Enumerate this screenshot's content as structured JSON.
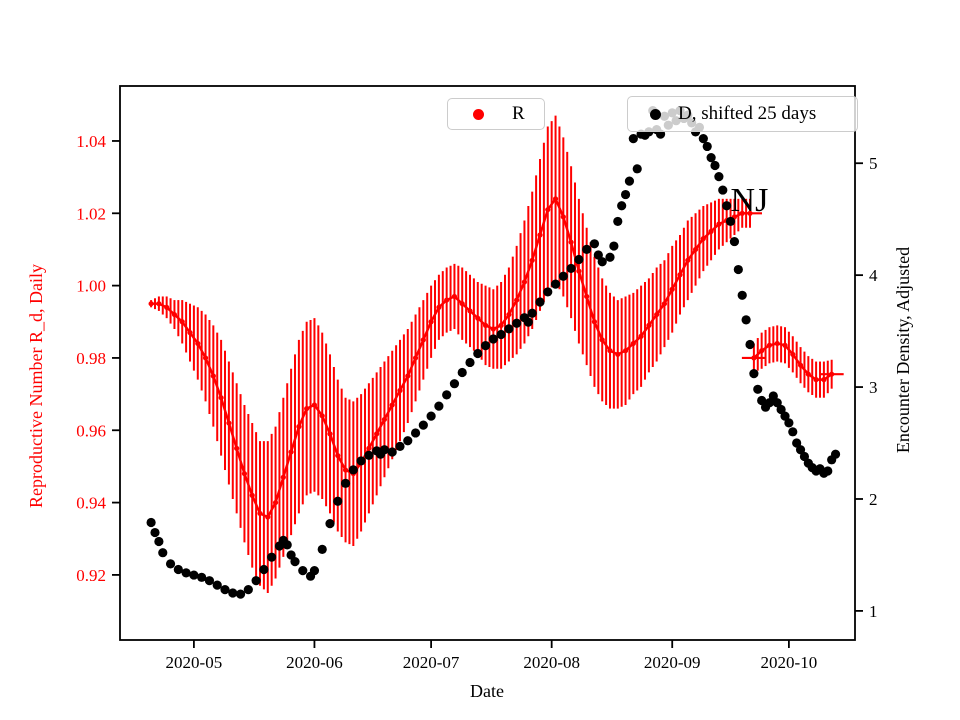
{
  "figure": {
    "background": "#ffffff"
  },
  "legend": {
    "frame_color": "#cccccc",
    "entries": [
      {
        "label": "R",
        "marker": "dot",
        "color": "#ff0000"
      },
      {
        "label": "D, shifted 25 days",
        "marker": "dot",
        "color": "#000000"
      }
    ]
  },
  "chart_data": {
    "type": "scatter",
    "title": "",
    "xlabel": "Date",
    "xlim": [
      "2020-04-12",
      "2020-10-18"
    ],
    "x_ticks": [
      {
        "label": "2020-05",
        "date": "2020-05-01"
      },
      {
        "label": "2020-06",
        "date": "2020-06-01"
      },
      {
        "label": "2020-07",
        "date": "2020-07-01"
      },
      {
        "label": "2020-08",
        "date": "2020-08-01"
      },
      {
        "label": "2020-09",
        "date": "2020-09-01"
      },
      {
        "label": "2020-10",
        "date": "2020-10-01"
      }
    ],
    "left_axis": {
      "label": "Reproductive Number R_d, Daily",
      "color": "#ff0000",
      "ylim": [
        0.902,
        1.0552
      ],
      "ticks": [
        {
          "label": "1.04",
          "value": 1.04
        },
        {
          "label": "1.02",
          "value": 1.02
        },
        {
          "label": "1.00",
          "value": 1.0
        },
        {
          "label": "0.98",
          "value": 0.98
        },
        {
          "label": "0.96",
          "value": 0.96
        },
        {
          "label": "0.94",
          "value": 0.94
        },
        {
          "label": "0.92",
          "value": 0.92
        }
      ]
    },
    "right_axis": {
      "label": "Encounter Density, Adjusted",
      "color": "#000000",
      "ylim": [
        0.74,
        5.69
      ],
      "ticks": [
        {
          "label": "5",
          "value": 5
        },
        {
          "label": "4",
          "value": 4
        },
        {
          "label": "3",
          "value": 3
        },
        {
          "label": "2",
          "value": 2
        },
        {
          "label": "1",
          "value": 1
        }
      ]
    },
    "annotation": {
      "text": "NJ",
      "date": "2020-09-16",
      "value_left_axis": 1.024
    },
    "series": [
      {
        "name": "R",
        "axis": "left",
        "color": "#ff0000",
        "style": "errorbar",
        "segments": [
          [
            [
              "2020-04-20",
              0.995,
              0.001
            ],
            [
              "2020-04-22",
              0.995,
              0.002
            ],
            [
              "2020-04-24",
              0.994,
              0.003
            ],
            [
              "2020-04-26",
              0.992,
              0.004
            ],
            [
              "2020-04-28",
              0.99,
              0.006
            ],
            [
              "2020-04-30",
              0.987,
              0.008
            ],
            [
              "2020-05-02",
              0.984,
              0.01
            ],
            [
              "2020-05-04",
              0.98,
              0.012
            ],
            [
              "2020-05-06",
              0.975,
              0.014
            ],
            [
              "2020-05-08",
              0.969,
              0.016
            ],
            [
              "2020-05-10",
              0.962,
              0.017
            ],
            [
              "2020-05-12",
              0.955,
              0.018
            ],
            [
              "2020-05-14",
              0.948,
              0.019
            ],
            [
              "2020-05-16",
              0.942,
              0.02
            ],
            [
              "2020-05-18",
              0.937,
              0.02
            ],
            [
              "2020-05-20",
              0.936,
              0.021
            ],
            [
              "2020-05-22",
              0.94,
              0.021
            ],
            [
              "2020-05-24",
              0.947,
              0.022
            ],
            [
              "2020-05-26",
              0.954,
              0.023
            ],
            [
              "2020-05-28",
              0.961,
              0.024
            ],
            [
              "2020-05-30",
              0.966,
              0.024
            ],
            [
              "2020-06-01",
              0.967,
              0.024
            ],
            [
              "2020-06-03",
              0.964,
              0.023
            ],
            [
              "2020-06-05",
              0.959,
              0.022
            ],
            [
              "2020-06-07",
              0.953,
              0.021
            ],
            [
              "2020-06-09",
              0.949,
              0.02
            ],
            [
              "2020-06-11",
              0.948,
              0.02
            ],
            [
              "2020-06-13",
              0.951,
              0.019
            ],
            [
              "2020-06-15",
              0.955,
              0.018
            ],
            [
              "2020-06-17",
              0.959,
              0.017
            ],
            [
              "2020-06-19",
              0.963,
              0.016
            ],
            [
              "2020-06-21",
              0.967,
              0.015
            ],
            [
              "2020-06-23",
              0.971,
              0.014
            ],
            [
              "2020-06-25",
              0.975,
              0.013
            ],
            [
              "2020-06-27",
              0.98,
              0.012
            ],
            [
              "2020-06-29",
              0.985,
              0.011
            ],
            [
              "2020-07-01",
              0.99,
              0.01
            ],
            [
              "2020-07-03",
              0.994,
              0.009
            ],
            [
              "2020-07-05",
              0.996,
              0.009
            ],
            [
              "2020-07-07",
              0.997,
              0.009
            ],
            [
              "2020-07-09",
              0.995,
              0.01
            ],
            [
              "2020-07-11",
              0.993,
              0.01
            ],
            [
              "2020-07-13",
              0.991,
              0.01
            ],
            [
              "2020-07-15",
              0.989,
              0.011
            ],
            [
              "2020-07-17",
              0.988,
              0.011
            ],
            [
              "2020-07-19",
              0.989,
              0.012
            ],
            [
              "2020-07-21",
              0.992,
              0.013
            ],
            [
              "2020-07-23",
              0.996,
              0.015
            ],
            [
              "2020-07-25",
              1.001,
              0.017
            ],
            [
              "2020-07-27",
              1.007,
              0.019
            ],
            [
              "2020-07-29",
              1.014,
              0.021
            ],
            [
              "2020-07-31",
              1.021,
              0.023
            ],
            [
              "2020-08-02",
              1.024,
              0.023
            ],
            [
              "2020-08-04",
              1.019,
              0.022
            ],
            [
              "2020-08-06",
              1.012,
              0.021
            ],
            [
              "2020-08-08",
              1.004,
              0.02
            ],
            [
              "2020-08-10",
              0.997,
              0.019
            ],
            [
              "2020-08-12",
              0.99,
              0.018
            ],
            [
              "2020-08-14",
              0.985,
              0.017
            ],
            [
              "2020-08-16",
              0.982,
              0.016
            ],
            [
              "2020-08-18",
              0.981,
              0.015
            ],
            [
              "2020-08-20",
              0.982,
              0.015
            ],
            [
              "2020-08-22",
              0.984,
              0.014
            ],
            [
              "2020-08-24",
              0.986,
              0.014
            ],
            [
              "2020-08-26",
              0.989,
              0.013
            ],
            [
              "2020-08-28",
              0.992,
              0.013
            ],
            [
              "2020-08-30",
              0.995,
              0.012
            ],
            [
              "2020-09-01",
              0.999,
              0.012
            ],
            [
              "2020-09-03",
              1.003,
              0.011
            ],
            [
              "2020-09-05",
              1.007,
              0.011
            ],
            [
              "2020-09-07",
              1.01,
              0.01
            ],
            [
              "2020-09-09",
              1.013,
              0.009
            ],
            [
              "2020-09-11",
              1.015,
              0.008
            ],
            [
              "2020-09-13",
              1.017,
              0.007
            ],
            [
              "2020-09-15",
              1.018,
              0.006
            ],
            [
              "2020-09-17",
              1.019,
              0.005
            ],
            [
              "2020-09-19",
              1.02,
              0.004
            ],
            [
              "2020-09-21",
              1.02,
              0.004
            ]
          ],
          [
            [
              "2020-09-22",
              0.98,
              0.004
            ],
            [
              "2020-09-24",
              0.982,
              0.005
            ],
            [
              "2020-09-26",
              0.9835,
              0.005
            ],
            [
              "2020-09-28",
              0.984,
              0.005
            ],
            [
              "2020-09-30",
              0.9835,
              0.005
            ],
            [
              "2020-10-02",
              0.981,
              0.005
            ],
            [
              "2020-10-04",
              0.978,
              0.005
            ],
            [
              "2020-10-06",
              0.9755,
              0.005
            ],
            [
              "2020-10-08",
              0.974,
              0.005
            ],
            [
              "2020-10-10",
              0.974,
              0.005
            ],
            [
              "2020-10-12",
              0.9755,
              0.004
            ]
          ]
        ]
      },
      {
        "name": "D, shifted 25 days",
        "axis": "right",
        "color": "#000000",
        "style": "scatter",
        "points": [
          [
            "2020-04-20",
            1.79
          ],
          [
            "2020-04-21",
            1.7
          ],
          [
            "2020-04-22",
            1.62
          ],
          [
            "2020-04-23",
            1.52
          ],
          [
            "2020-04-25",
            1.42
          ],
          [
            "2020-04-27",
            1.37
          ],
          [
            "2020-04-29",
            1.34
          ],
          [
            "2020-05-01",
            1.32
          ],
          [
            "2020-05-03",
            1.3
          ],
          [
            "2020-05-05",
            1.27
          ],
          [
            "2020-05-07",
            1.23
          ],
          [
            "2020-05-09",
            1.19
          ],
          [
            "2020-05-11",
            1.16
          ],
          [
            "2020-05-13",
            1.15
          ],
          [
            "2020-05-15",
            1.19
          ],
          [
            "2020-05-17",
            1.27
          ],
          [
            "2020-05-19",
            1.37
          ],
          [
            "2020-05-21",
            1.48
          ],
          [
            "2020-05-23",
            1.58
          ],
          [
            "2020-05-24",
            1.63
          ],
          [
            "2020-05-25",
            1.59
          ],
          [
            "2020-05-26",
            1.5
          ],
          [
            "2020-05-27",
            1.44
          ],
          [
            "2020-05-29",
            1.36
          ],
          [
            "2020-05-31",
            1.31
          ],
          [
            "2020-06-01",
            1.36
          ],
          [
            "2020-06-03",
            1.55
          ],
          [
            "2020-06-05",
            1.78
          ],
          [
            "2020-06-07",
            1.98
          ],
          [
            "2020-06-09",
            2.14
          ],
          [
            "2020-06-11",
            2.26
          ],
          [
            "2020-06-13",
            2.34
          ],
          [
            "2020-06-15",
            2.39
          ],
          [
            "2020-06-17",
            2.43
          ],
          [
            "2020-06-18",
            2.4
          ],
          [
            "2020-06-19",
            2.44
          ],
          [
            "2020-06-21",
            2.42
          ],
          [
            "2020-06-23",
            2.47
          ],
          [
            "2020-06-25",
            2.52
          ],
          [
            "2020-06-27",
            2.59
          ],
          [
            "2020-06-29",
            2.66
          ],
          [
            "2020-07-01",
            2.74
          ],
          [
            "2020-07-03",
            2.83
          ],
          [
            "2020-07-05",
            2.93
          ],
          [
            "2020-07-07",
            3.03
          ],
          [
            "2020-07-09",
            3.13
          ],
          [
            "2020-07-11",
            3.22
          ],
          [
            "2020-07-13",
            3.3
          ],
          [
            "2020-07-15",
            3.37
          ],
          [
            "2020-07-17",
            3.43
          ],
          [
            "2020-07-19",
            3.47
          ],
          [
            "2020-07-21",
            3.52
          ],
          [
            "2020-07-23",
            3.57
          ],
          [
            "2020-07-25",
            3.62
          ],
          [
            "2020-07-26",
            3.58
          ],
          [
            "2020-07-27",
            3.66
          ],
          [
            "2020-07-29",
            3.76
          ],
          [
            "2020-07-31",
            3.85
          ],
          [
            "2020-08-02",
            3.92
          ],
          [
            "2020-08-04",
            3.99
          ],
          [
            "2020-08-06",
            4.06
          ],
          [
            "2020-08-08",
            4.14
          ],
          [
            "2020-08-10",
            4.23
          ],
          [
            "2020-08-12",
            4.28
          ],
          [
            "2020-08-13",
            4.18
          ],
          [
            "2020-08-14",
            4.12
          ],
          [
            "2020-08-16",
            4.16
          ],
          [
            "2020-08-17",
            4.26
          ],
          [
            "2020-08-18",
            4.48
          ],
          [
            "2020-08-19",
            4.62
          ],
          [
            "2020-08-20",
            4.72
          ],
          [
            "2020-08-21",
            4.84
          ],
          [
            "2020-08-22",
            5.22
          ],
          [
            "2020-08-23",
            4.95
          ],
          [
            "2020-08-24",
            5.26
          ],
          [
            "2020-08-25",
            5.25
          ],
          [
            "2020-08-26",
            5.28
          ],
          [
            "2020-08-27",
            5.47
          ],
          [
            "2020-08-28",
            5.3
          ],
          [
            "2020-08-29",
            5.26
          ],
          [
            "2020-08-30",
            5.42
          ],
          [
            "2020-08-31",
            5.34
          ],
          [
            "2020-09-01",
            5.45
          ],
          [
            "2020-09-02",
            5.38
          ],
          [
            "2020-09-03",
            5.47
          ],
          [
            "2020-09-04",
            5.4
          ],
          [
            "2020-09-05",
            5.43
          ],
          [
            "2020-09-06",
            5.36
          ],
          [
            "2020-09-07",
            5.28
          ],
          [
            "2020-09-08",
            5.32
          ],
          [
            "2020-09-09",
            5.22
          ],
          [
            "2020-09-10",
            5.15
          ],
          [
            "2020-09-11",
            5.05
          ],
          [
            "2020-09-12",
            4.98
          ],
          [
            "2020-09-13",
            4.88
          ],
          [
            "2020-09-14",
            4.76
          ],
          [
            "2020-09-15",
            4.62
          ],
          [
            "2020-09-16",
            4.48
          ],
          [
            "2020-09-17",
            4.3
          ],
          [
            "2020-09-18",
            4.05
          ],
          [
            "2020-09-19",
            3.82
          ],
          [
            "2020-09-20",
            3.6
          ],
          [
            "2020-09-21",
            3.38
          ],
          [
            "2020-09-22",
            3.12
          ],
          [
            "2020-09-23",
            2.98
          ],
          [
            "2020-09-24",
            2.88
          ],
          [
            "2020-09-25",
            2.82
          ],
          [
            "2020-09-26",
            2.86
          ],
          [
            "2020-09-27",
            2.92
          ],
          [
            "2020-09-28",
            2.86
          ],
          [
            "2020-09-29",
            2.8
          ],
          [
            "2020-09-30",
            2.74
          ],
          [
            "2020-10-01",
            2.68
          ],
          [
            "2020-10-02",
            2.6
          ],
          [
            "2020-10-03",
            2.5
          ],
          [
            "2020-10-04",
            2.44
          ],
          [
            "2020-10-05",
            2.38
          ],
          [
            "2020-10-06",
            2.32
          ],
          [
            "2020-10-07",
            2.28
          ],
          [
            "2020-10-08",
            2.25
          ],
          [
            "2020-10-09",
            2.27
          ],
          [
            "2020-10-10",
            2.23
          ],
          [
            "2020-10-11",
            2.25
          ],
          [
            "2020-10-12",
            2.35
          ],
          [
            "2020-10-13",
            2.4
          ]
        ]
      }
    ]
  }
}
